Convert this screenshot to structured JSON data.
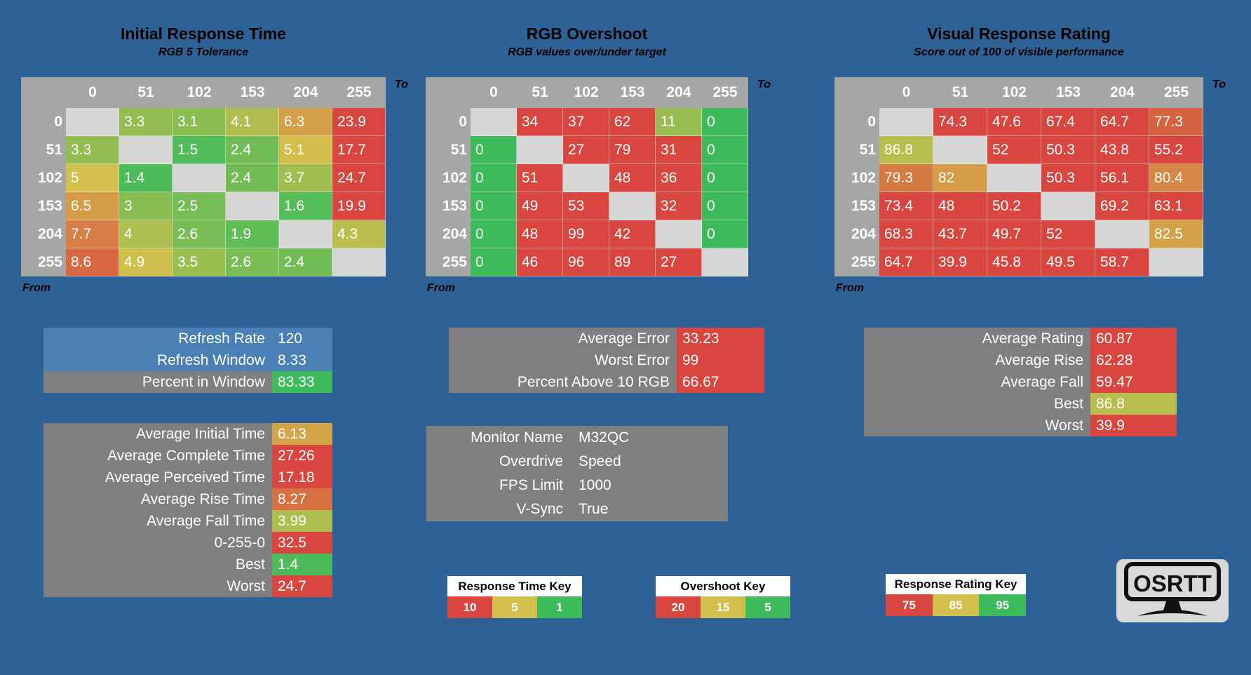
{
  "colors": {
    "background": "#2e6195",
    "red": "#d8463f",
    "yellow": "#d3bf4b",
    "green": "#3dbb5b",
    "blank": "#d6d6d6",
    "header": "#a6a6a6",
    "panel_gray": "#7f7f7f",
    "panel_blue": "#4a80b6",
    "key_title_bg": "#ffffff"
  },
  "scales": {
    "time": {
      "stops": [
        {
          "v": 1,
          "c": "#3dbb5b"
        },
        {
          "v": 5,
          "c": "#d3bf4b"
        },
        {
          "v": 10,
          "c": "#d8463f"
        }
      ]
    },
    "overshoot": {
      "stops": [
        {
          "v": 5,
          "c": "#3dbb5b"
        },
        {
          "v": 15,
          "c": "#d3bf4b"
        },
        {
          "v": 20,
          "c": "#d8463f"
        }
      ]
    },
    "rating": {
      "stops": [
        {
          "v": 75,
          "c": "#d8463f"
        },
        {
          "v": 85,
          "c": "#d3bf4b"
        },
        {
          "v": 95,
          "c": "#3dbb5b"
        }
      ]
    }
  },
  "axis": {
    "to_label": "To",
    "from_label": "From",
    "levels": [
      "0",
      "51",
      "102",
      "153",
      "204",
      "255"
    ]
  },
  "tables": [
    {
      "title": "Initial Response Time",
      "subtitle": "RGB 5 Tolerance",
      "scale": "time",
      "rows": [
        [
          null,
          3.3,
          3.1,
          4.1,
          6.3,
          23.9
        ],
        [
          3.3,
          null,
          1.5,
          2.4,
          5.1,
          17.7
        ],
        [
          5,
          1.4,
          null,
          2.4,
          3.7,
          24.7
        ],
        [
          6.5,
          3,
          2.5,
          null,
          1.6,
          19.9
        ],
        [
          7.7,
          4,
          2.6,
          1.9,
          null,
          4.3
        ],
        [
          8.6,
          4.9,
          3.5,
          2.6,
          2.4,
          null
        ]
      ]
    },
    {
      "title": "RGB Overshoot",
      "subtitle": "RGB values over/under target",
      "scale": "overshoot",
      "rows": [
        [
          null,
          34,
          37,
          62,
          11,
          0
        ],
        [
          0,
          null,
          27,
          79,
          31,
          0
        ],
        [
          0,
          51,
          null,
          48,
          36,
          0
        ],
        [
          0,
          49,
          53,
          null,
          32,
          0
        ],
        [
          0,
          48,
          99,
          42,
          null,
          0
        ],
        [
          0,
          46,
          96,
          89,
          27,
          null
        ]
      ]
    },
    {
      "title": "Visual Response Rating",
      "subtitle": "Score out of 100 of visible performance",
      "scale": "rating",
      "rows": [
        [
          null,
          74.3,
          47.6,
          67.4,
          64.7,
          77.3
        ],
        [
          86.8,
          null,
          52,
          50.3,
          43.8,
          55.2
        ],
        [
          79.3,
          82,
          null,
          50.3,
          56.1,
          80.4
        ],
        [
          73.4,
          48,
          50.2,
          null,
          69.2,
          63.1
        ],
        [
          68.3,
          43.7,
          49.7,
          52,
          null,
          82.5
        ],
        [
          64.7,
          39.9,
          45.8,
          49.5,
          58.7,
          null
        ]
      ]
    }
  ],
  "panels": {
    "refresh": {
      "rows": [
        {
          "label": "Refresh Rate",
          "value": "120",
          "label_bg": "panel_blue"
        },
        {
          "label": "Refresh Window",
          "value": "8.33",
          "label_bg": "panel_blue"
        },
        {
          "label": "Percent in Window",
          "value": "83.33",
          "label_bg": "panel_gray",
          "value_bg": "green"
        }
      ]
    },
    "times": {
      "rows": [
        {
          "label": "Average Initial Time",
          "value": "6.13",
          "scale": "time"
        },
        {
          "label": "Average Complete Time",
          "value": "27.26",
          "scale": "time"
        },
        {
          "label": "Average Perceived Time",
          "value": "17.18",
          "scale": "time"
        },
        {
          "label": "Average Rise Time",
          "value": "8.27",
          "scale": "time"
        },
        {
          "label": "Average Fall Time",
          "value": "3.99",
          "scale": "time"
        },
        {
          "label": "0-255-0",
          "value": "32.5",
          "scale": "time"
        },
        {
          "label": "Best",
          "value": "1.4",
          "scale": "time"
        },
        {
          "label": "Worst",
          "value": "24.7",
          "scale": "time"
        }
      ]
    },
    "error": {
      "rows": [
        {
          "label": "Average Error",
          "value": "33.23",
          "scale": "overshoot"
        },
        {
          "label": "Worst Error",
          "value": "99",
          "scale": "overshoot"
        },
        {
          "label": "Percent Above 10 RGB",
          "value": "66.67",
          "scale": "overshoot"
        }
      ]
    },
    "monitor": {
      "rows": [
        {
          "label": "Monitor Name",
          "value": "M32QC"
        },
        {
          "label": "Overdrive",
          "value": "Speed"
        },
        {
          "label": "FPS Limit",
          "value": "1000"
        },
        {
          "label": "V-Sync",
          "value": "True"
        }
      ]
    },
    "rating": {
      "rows": [
        {
          "label": "Average Rating",
          "value": "60.87",
          "scale": "rating"
        },
        {
          "label": "Average Rise",
          "value": "62.28",
          "scale": "rating"
        },
        {
          "label": "Average Fall",
          "value": "59.47",
          "scale": "rating"
        },
        {
          "label": "Best",
          "value": "86.8",
          "scale": "rating"
        },
        {
          "label": "Worst",
          "value": "39.9",
          "scale": "rating"
        }
      ]
    }
  },
  "keys": [
    {
      "title": "Response Time Key",
      "swatches": [
        {
          "value": "10",
          "color": "red"
        },
        {
          "value": "5",
          "color": "yellow"
        },
        {
          "value": "1",
          "color": "green"
        }
      ]
    },
    {
      "title": "Overshoot Key",
      "swatches": [
        {
          "value": "20",
          "color": "red"
        },
        {
          "value": "15",
          "color": "yellow"
        },
        {
          "value": "5",
          "color": "green"
        }
      ]
    },
    {
      "title": "Response Rating Key",
      "swatches": [
        {
          "value": "75",
          "color": "red"
        },
        {
          "value": "85",
          "color": "yellow"
        },
        {
          "value": "95",
          "color": "green"
        }
      ]
    }
  ],
  "logo": {
    "text": "OSRTT"
  }
}
